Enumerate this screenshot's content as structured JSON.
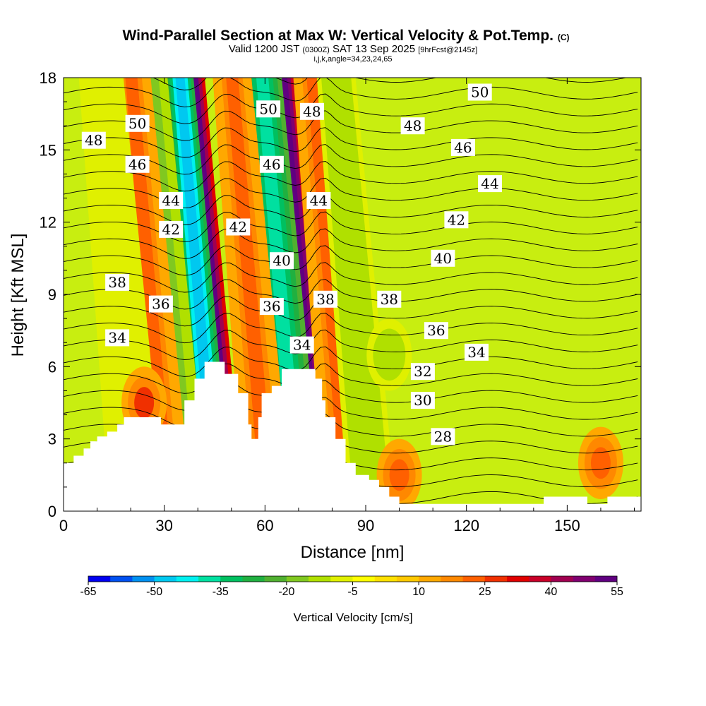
{
  "chart_data": {
    "type": "heatmap",
    "title": "Wind-Parallel Section at Max W: Vertical Velocity & Pot.Temp.",
    "title_suffix": "(C)",
    "subtitle_parts": [
      "Valid 1200 JST",
      "(0300Z)",
      "SAT 13 Sep 2025",
      "[9hrFcst@2145z]"
    ],
    "subtitle2": "i,j,k,angle=34,23,24,65",
    "xlabel": "Distance [nm]",
    "ylabel": "Height [Kft MSL]",
    "xlim": [
      0,
      172
    ],
    "ylim": [
      0,
      18
    ],
    "x_ticks": [
      0,
      30,
      60,
      90,
      120,
      150
    ],
    "y_ticks": [
      0,
      3,
      6,
      9,
      12,
      15,
      18
    ],
    "colorbar": {
      "label": "Vertical Velocity [cm/s]",
      "tick_labels": [
        "-65",
        "-50",
        "-35",
        "-20",
        "-5",
        "10",
        "25",
        "40",
        "55"
      ],
      "colors": [
        "#0000f0",
        "#0050f0",
        "#0090f0",
        "#00c8f0",
        "#00f0f0",
        "#00e0a0",
        "#00c060",
        "#20b040",
        "#50b030",
        "#80c820",
        "#b0e000",
        "#e0f000",
        "#ffff00",
        "#ffe000",
        "#ffc800",
        "#ffa800",
        "#ff8800",
        "#ff6000",
        "#f03000",
        "#e00000",
        "#c80028",
        "#a00050",
        "#800070",
        "#600080"
      ]
    },
    "velocity_field": {
      "units": "cm/s",
      "bands": [
        {
          "x": 48.5,
          "width": 2.2,
          "value": 60
        },
        {
          "x": 45.5,
          "width": 2.0,
          "value": -50
        },
        {
          "x": 76,
          "width": 2.2,
          "value": 55
        },
        {
          "x": 70,
          "width": 3.0,
          "value": -40
        },
        {
          "x": 36,
          "width": 3.0,
          "value": -20
        },
        {
          "x": 31,
          "width": 3.0,
          "value": 20
        },
        {
          "x": 85,
          "width": 3.0,
          "value": 20
        },
        {
          "x": 92,
          "width": 3.0,
          "value": -15
        },
        {
          "x": 22,
          "width": 3.5,
          "value": -10
        },
        {
          "x": 61,
          "width": 3.0,
          "value": 20
        }
      ],
      "blobs": [
        {
          "x": 24,
          "y": 4.5,
          "value": 25
        },
        {
          "x": 100,
          "y": 1.5,
          "value": 20
        },
        {
          "x": 160,
          "y": 2.0,
          "value": 20
        },
        {
          "x": 97,
          "y": 6.5,
          "value": -15
        }
      ]
    },
    "theta_contours": {
      "units": "C",
      "levels": [
        26,
        27,
        28,
        29,
        30,
        31,
        32,
        33,
        34,
        35,
        36,
        37,
        38,
        39,
        40,
        41,
        42,
        43,
        44,
        45,
        46,
        47,
        48,
        49,
        50,
        51,
        52
      ],
      "labels": [
        {
          "x": 124,
          "y": 17.4,
          "text": "50"
        },
        {
          "x": 61,
          "y": 16.7,
          "text": "50"
        },
        {
          "x": 22,
          "y": 16.1,
          "text": "50"
        },
        {
          "x": 74,
          "y": 16.6,
          "text": "48"
        },
        {
          "x": 104,
          "y": 16.0,
          "text": "48"
        },
        {
          "x": 9,
          "y": 15.4,
          "text": "48"
        },
        {
          "x": 119,
          "y": 15.1,
          "text": "46"
        },
        {
          "x": 62,
          "y": 14.4,
          "text": "46"
        },
        {
          "x": 22,
          "y": 14.4,
          "text": "46"
        },
        {
          "x": 127,
          "y": 13.6,
          "text": "44"
        },
        {
          "x": 32,
          "y": 12.9,
          "text": "44"
        },
        {
          "x": 76,
          "y": 12.9,
          "text": "44"
        },
        {
          "x": 117,
          "y": 12.1,
          "text": "42"
        },
        {
          "x": 52,
          "y": 11.8,
          "text": "42"
        },
        {
          "x": 32,
          "y": 11.7,
          "text": "42"
        },
        {
          "x": 113,
          "y": 10.5,
          "text": "40"
        },
        {
          "x": 65,
          "y": 10.4,
          "text": "40"
        },
        {
          "x": 16,
          "y": 9.5,
          "text": "38"
        },
        {
          "x": 78,
          "y": 8.8,
          "text": "38"
        },
        {
          "x": 97,
          "y": 8.8,
          "text": "38"
        },
        {
          "x": 29,
          "y": 8.6,
          "text": "36"
        },
        {
          "x": 62,
          "y": 8.5,
          "text": "36"
        },
        {
          "x": 111,
          "y": 7.5,
          "text": "36"
        },
        {
          "x": 16,
          "y": 7.2,
          "text": "34"
        },
        {
          "x": 71,
          "y": 6.9,
          "text": "34"
        },
        {
          "x": 123,
          "y": 6.6,
          "text": "34"
        },
        {
          "x": 107,
          "y": 5.8,
          "text": "32"
        },
        {
          "x": 107,
          "y": 4.6,
          "text": "30"
        },
        {
          "x": 113,
          "y": 3.1,
          "text": "28"
        }
      ]
    },
    "terrain": [
      [
        0,
        2.0
      ],
      [
        3,
        2.0
      ],
      [
        3,
        2.3
      ],
      [
        6,
        2.3
      ],
      [
        6,
        2.6
      ],
      [
        8,
        2.6
      ],
      [
        8,
        2.9
      ],
      [
        10,
        2.9
      ],
      [
        10,
        3.1
      ],
      [
        13,
        3.1
      ],
      [
        13,
        3.3
      ],
      [
        16,
        3.3
      ],
      [
        16,
        3.6
      ],
      [
        18,
        3.6
      ],
      [
        18,
        3.9
      ],
      [
        29,
        3.9
      ],
      [
        29,
        3.6
      ],
      [
        36,
        3.6
      ],
      [
        36,
        4.6
      ],
      [
        39,
        4.6
      ],
      [
        39,
        5.5
      ],
      [
        42,
        5.5
      ],
      [
        42,
        6.2
      ],
      [
        48,
        6.2
      ],
      [
        48,
        5.7
      ],
      [
        52,
        5.7
      ],
      [
        52,
        4.9
      ],
      [
        55,
        4.9
      ],
      [
        55,
        3.6
      ],
      [
        56,
        3.6
      ],
      [
        56,
        3.0
      ],
      [
        58,
        3.0
      ],
      [
        58,
        3.9
      ],
      [
        59,
        3.9
      ],
      [
        59,
        4.9
      ],
      [
        62,
        4.9
      ],
      [
        62,
        5.2
      ],
      [
        65,
        5.2
      ],
      [
        65,
        5.9
      ],
      [
        75,
        5.9
      ],
      [
        75,
        5.5
      ],
      [
        77,
        5.5
      ],
      [
        77,
        4.6
      ],
      [
        78,
        4.6
      ],
      [
        78,
        3.9
      ],
      [
        81,
        3.9
      ],
      [
        81,
        3.0
      ],
      [
        84,
        3.0
      ],
      [
        84,
        2.0
      ],
      [
        87,
        2.0
      ],
      [
        87,
        1.5
      ],
      [
        91,
        1.5
      ],
      [
        91,
        1.3
      ],
      [
        94,
        1.3
      ],
      [
        94,
        1.0
      ],
      [
        97,
        1.0
      ],
      [
        97,
        0.6
      ],
      [
        100,
        0.6
      ],
      [
        100,
        0.3
      ],
      [
        143,
        0.3
      ],
      [
        143,
        0.6
      ],
      [
        156,
        0.6
      ],
      [
        156,
        0.3
      ],
      [
        162,
        0.3
      ],
      [
        162,
        0.6
      ],
      [
        172,
        0.6
      ],
      [
        172,
        0
      ],
      [
        0,
        0
      ]
    ]
  }
}
